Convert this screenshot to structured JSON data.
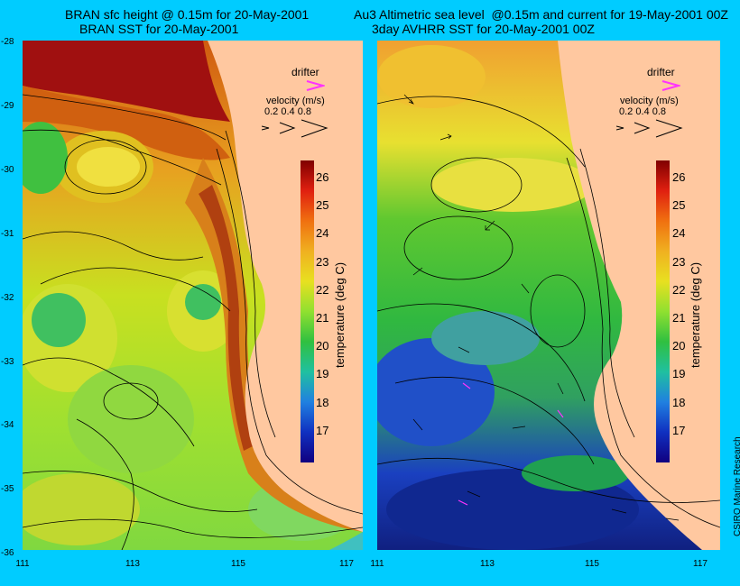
{
  "left_panel": {
    "title_line1": "BRAN sfc height @ 0.15m for 20-May-2001",
    "title_line2": "BRAN SST for 20-May-2001"
  },
  "right_panel": {
    "title_line1": "Au3 Altimetric sea level  @0.15m and current for 19-May-2001 00Z",
    "title_line2": "3day AVHRR SST for 20-May-2001 00Z"
  },
  "legend": {
    "drifter_label": "drifter",
    "velocity_label": "velocity (m/s)",
    "velocity_values": "0.2 0.4 0.8"
  },
  "colorbar": {
    "title": "temperature (deg C)",
    "ticks": [
      "26",
      "25",
      "24",
      "23",
      "22",
      "21",
      "20",
      "19",
      "18",
      "17"
    ]
  },
  "axes": {
    "y_ticks": [
      "-28",
      "-29",
      "-30",
      "-31",
      "-32",
      "-33",
      "-34",
      "-35",
      "-36"
    ],
    "x_ticks": [
      "111",
      "113",
      "115",
      "117"
    ]
  },
  "credit": "CSIRO Marine Research",
  "colors": {
    "background": "#00ccff",
    "land": "#ffc8a0",
    "drifter": "#ff33ff"
  }
}
